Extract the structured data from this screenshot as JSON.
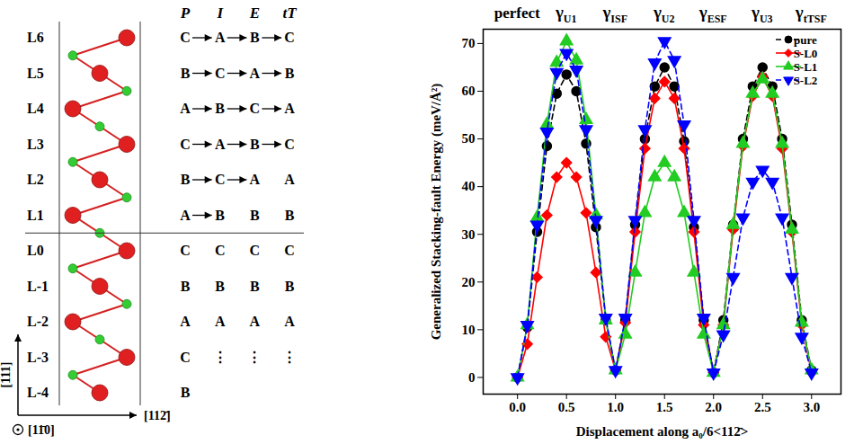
{
  "diagram": {
    "columns": [
      "P",
      "I",
      "E",
      "tT"
    ],
    "layers": [
      {
        "name": "L6",
        "P": "C",
        "I": "A",
        "E": "B",
        "tT": "C"
      },
      {
        "name": "L5",
        "P": "B",
        "I": "C",
        "E": "A",
        "tT": "B"
      },
      {
        "name": "L4",
        "P": "A",
        "I": "B",
        "E": "C",
        "tT": "A"
      },
      {
        "name": "L3",
        "P": "C",
        "I": "A",
        "E": "B",
        "tT": "C"
      },
      {
        "name": "L2",
        "P": "B",
        "I": "C",
        "E": "A",
        "tT": "A"
      },
      {
        "name": "L1",
        "P": "A",
        "I": "B",
        "E": "B",
        "tT": "B"
      },
      {
        "name": "L0",
        "P": "C",
        "I": "C",
        "E": "C",
        "tT": "C"
      },
      {
        "name": "L-1",
        "P": "B",
        "I": "B",
        "E": "B",
        "tT": "B"
      },
      {
        "name": "L-2",
        "P": "A",
        "I": "A",
        "E": "A",
        "tT": "A"
      },
      {
        "name": "L-3",
        "P": "C",
        "I": "⋮",
        "E": "⋮",
        "tT": "⋮"
      },
      {
        "name": "L-4",
        "P": "B"
      }
    ],
    "axes": {
      "vertical": "[111]",
      "out_of_plane": "[11̄0]",
      "horizontal": "[112̄]"
    }
  },
  "chart_data": {
    "type": "line",
    "x_label": "Displacement along a₀/6<112̄>",
    "y_label": "Generalized Stacking-fault Energy (meV/Å²)",
    "x": [
      0,
      0.1,
      0.2,
      0.3,
      0.4,
      0.5,
      0.6,
      0.7,
      0.8,
      0.9,
      1.0,
      1.1,
      1.2,
      1.3,
      1.4,
      1.5,
      1.6,
      1.7,
      1.8,
      1.9,
      2.0,
      2.1,
      2.2,
      2.3,
      2.4,
      2.5,
      2.6,
      2.7,
      2.8,
      2.9,
      3.0
    ],
    "xlim": [
      -0.35,
      3.3
    ],
    "xticks": [
      {
        "value": 0,
        "label": "0.0"
      },
      {
        "value": 0.5,
        "label": "0.5"
      },
      {
        "value": 1,
        "label": "1.0"
      },
      {
        "value": 1.5,
        "label": "1.5"
      },
      {
        "value": 2,
        "label": "2.0"
      },
      {
        "value": 2.5,
        "label": "2.5"
      },
      {
        "value": 3,
        "label": "3.0"
      }
    ],
    "ylim": [
      -3.5,
      73
    ],
    "yticks": [
      0,
      10,
      20,
      30,
      40,
      50,
      60,
      70
    ],
    "legend": "top-right",
    "annotations": [
      {
        "text": "perfect",
        "x": 0
      },
      {
        "text": "γ",
        "sub": "U1",
        "x": 0.5
      },
      {
        "text": "γ",
        "sub": "ISF",
        "x": 1.0
      },
      {
        "text": "γ",
        "sub": "U2",
        "x": 1.5
      },
      {
        "text": "γ",
        "sub": "ESF",
        "x": 2.0
      },
      {
        "text": "γ",
        "sub": "U3",
        "x": 2.5
      },
      {
        "text": "γ",
        "sub": "tTSF",
        "x": 3.0
      }
    ],
    "series": [
      {
        "name": "pure",
        "color": "#000000",
        "marker": "circle",
        "line_style": "dashed",
        "values": [
          0,
          10.5,
          30.5,
          48.5,
          59.5,
          63.5,
          60,
          49,
          31.5,
          12,
          1.5,
          12,
          32,
          50,
          61,
          65,
          61,
          49.5,
          31.5,
          12,
          1,
          12,
          32,
          50,
          61,
          65,
          61,
          50,
          32,
          12,
          1.5
        ]
      },
      {
        "name": "S-L0",
        "color": "#ff0000",
        "marker": "diamond",
        "line_style": "solid",
        "values": [
          0,
          7,
          21,
          34,
          42,
          45,
          42,
          34.5,
          22,
          8.5,
          1.5,
          11.5,
          30.5,
          48,
          58.5,
          62,
          58.5,
          48,
          30.5,
          11,
          1,
          11,
          31,
          48.5,
          59,
          63,
          59,
          48,
          30.5,
          11,
          1
        ]
      },
      {
        "name": "S-L1",
        "color": "#22cc22",
        "marker": "triangle",
        "line_style": "solid",
        "values": [
          0,
          11,
          33.5,
          53,
          66,
          70.5,
          66.5,
          54,
          34,
          12,
          1.5,
          9,
          22,
          34.5,
          42,
          45,
          42,
          34.5,
          22,
          9,
          1,
          11,
          32,
          49,
          59.5,
          62.5,
          59.5,
          49,
          31,
          11.5,
          1.5
        ]
      },
      {
        "name": "S-L2",
        "color": "#0000ff",
        "marker": "triangle-down",
        "line_style": "dashed",
        "values": [
          0,
          11,
          32,
          51.5,
          64,
          68,
          64.5,
          52,
          33,
          12.5,
          1.5,
          12.5,
          33,
          52,
          66,
          70.5,
          66.5,
          53,
          33,
          12.5,
          1,
          9,
          21,
          33.5,
          41,
          43.5,
          41,
          33.5,
          21,
          8.5,
          1
        ]
      }
    ]
  }
}
